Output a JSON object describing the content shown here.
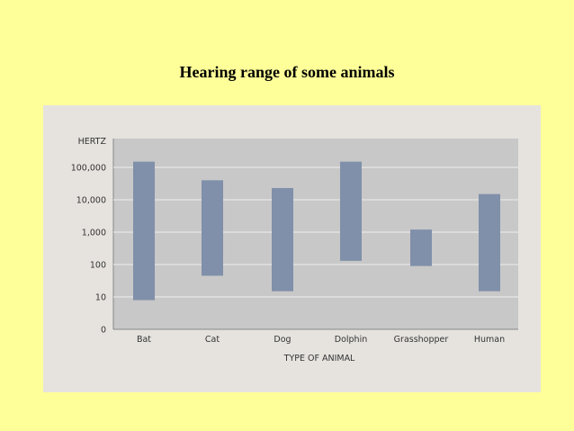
{
  "page": {
    "title": "Hearing range of some animals"
  },
  "chart_data": {
    "type": "bar",
    "subtype": "floating-range",
    "y_scale": "log",
    "xlabel": "TYPE OF ANIMAL",
    "ylabel": "HERTZ",
    "y_tick_labels": [
      "0",
      "10",
      "100",
      "1,000",
      "10,000",
      "100,000"
    ],
    "categories": [
      "Bat",
      "Cat",
      "Dog",
      "Dolphin",
      "Grasshopper",
      "Human"
    ],
    "series": [
      {
        "ranges": [
          [
            9,
            150000
          ],
          [
            45,
            40000
          ],
          [
            15,
            23000
          ],
          [
            130,
            150000
          ],
          [
            90,
            1200
          ],
          [
            15,
            15000
          ]
        ]
      }
    ],
    "grid": true,
    "colors": {
      "bar": "#8090aa",
      "plot_bg": "#c8c8c8",
      "panel_bg": "#e6e3df",
      "grid": "#eeeeee",
      "page_bg": "#ffff99"
    }
  }
}
